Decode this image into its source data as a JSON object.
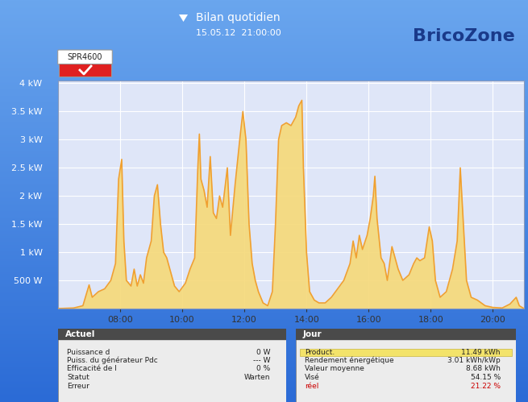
{
  "chart_data": {
    "type": "area",
    "title": "Bilan quotidien",
    "subtitle": "15.05.12  21:00:00",
    "device": "SPR4600",
    "x": [
      6.0,
      6.5,
      6.8,
      7.0,
      7.1,
      7.3,
      7.5,
      7.7,
      7.85,
      7.95,
      8.05,
      8.12,
      8.2,
      8.35,
      8.45,
      8.55,
      8.65,
      8.75,
      8.85,
      9.0,
      9.1,
      9.2,
      9.3,
      9.4,
      9.5,
      9.6,
      9.75,
      9.9,
      10.1,
      10.25,
      10.4,
      10.5,
      10.55,
      10.6,
      10.7,
      10.8,
      10.9,
      11.0,
      11.1,
      11.2,
      11.3,
      11.45,
      11.55,
      11.7,
      11.85,
      11.95,
      12.05,
      12.15,
      12.25,
      12.35,
      12.45,
      12.6,
      12.75,
      12.9,
      13.0,
      13.1,
      13.2,
      13.35,
      13.5,
      13.65,
      13.75,
      13.85,
      13.9,
      14.0,
      14.1,
      14.25,
      14.4,
      14.6,
      14.8,
      15.0,
      15.2,
      15.4,
      15.5,
      15.6,
      15.7,
      15.8,
      15.95,
      16.05,
      16.15,
      16.2,
      16.27,
      16.4,
      16.5,
      16.6,
      16.75,
      16.85,
      16.95,
      17.1,
      17.3,
      17.45,
      17.55,
      17.65,
      17.8,
      17.95,
      18.05,
      18.15,
      18.3,
      18.5,
      18.7,
      18.85,
      18.95,
      19.05,
      19.15,
      19.3,
      19.5,
      19.75,
      20.0,
      20.3,
      20.55,
      20.75,
      20.85,
      21.0
    ],
    "values": [
      0,
      10,
      50,
      420,
      200,
      300,
      350,
      500,
      800,
      2300,
      2650,
      1200,
      500,
      400,
      700,
      400,
      600,
      450,
      900,
      1200,
      2000,
      2200,
      1500,
      1000,
      900,
      700,
      400,
      300,
      450,
      700,
      900,
      2500,
      3100,
      2300,
      2100,
      1800,
      2700,
      1700,
      1600,
      2000,
      1800,
      2500,
      1300,
      2200,
      3000,
      3500,
      3000,
      1500,
      800,
      500,
      300,
      100,
      50,
      300,
      1500,
      3000,
      3250,
      3300,
      3250,
      3400,
      3600,
      3700,
      2500,
      1000,
      300,
      150,
      100,
      100,
      200,
      350,
      500,
      800,
      1200,
      900,
      1300,
      1050,
      1300,
      1600,
      2000,
      2350,
      1600,
      900,
      800,
      500,
      1100,
      900,
      700,
      500,
      600,
      800,
      900,
      850,
      900,
      1450,
      1200,
      500,
      200,
      300,
      700,
      1200,
      2500,
      1500,
      500,
      200,
      150,
      50,
      20,
      10,
      80,
      200,
      50,
      0
    ],
    "color": "#f6d978",
    "xlim": [
      6,
      21
    ],
    "xticks": [
      {
        "value": 8,
        "label": "08:00"
      },
      {
        "value": 10,
        "label": "10:00"
      },
      {
        "value": 12,
        "label": "12:00"
      },
      {
        "value": 14,
        "label": "14:00"
      },
      {
        "value": 16,
        "label": "16:00"
      },
      {
        "value": 18,
        "label": "18:00"
      },
      {
        "value": 20,
        "label": "20:00"
      }
    ],
    "ylim": [
      0,
      4050
    ],
    "yticks": [
      {
        "value": 500,
        "label": "500 W"
      },
      {
        "value": 1000,
        "label": "1 kW"
      },
      {
        "value": 1500,
        "label": "1.5 kW"
      },
      {
        "value": 2000,
        "label": "2 kW"
      },
      {
        "value": 2500,
        "label": "2.5 kW"
      },
      {
        "value": 3000,
        "label": "3 kW"
      },
      {
        "value": 3500,
        "label": "3.5 kW"
      },
      {
        "value": 4000,
        "label": "4 kW"
      }
    ],
    "grid": true
  },
  "panels": [
    {
      "title": "Actuel",
      "rows": [
        {
          "label": "Puissance d",
          "value": "0 W"
        },
        {
          "label": "Puiss. du générateur Pdc",
          "value": "--- W"
        },
        {
          "label": "Efficacité de l",
          "value": "0 %"
        },
        {
          "label": "Statut",
          "value": "Warten"
        },
        {
          "label": "Erreur"
        }
      ]
    },
    {
      "title": "Jour",
      "rows": [
        {
          "label": "Product.",
          "value": "11.49 kWh"
        },
        {
          "label": "Rendement énergétique",
          "value": "3.01 kWh/kWp"
        },
        {
          "label": "Valeur moyenne",
          "value": "8.68 kWh"
        },
        {
          "label": "Visé",
          "value": "54.15 %"
        },
        {
          "label": "réel",
          "value": "21.22 %",
          "color": "#cc0000"
        }
      ]
    }
  ],
  "watermark": "BricoZone"
}
